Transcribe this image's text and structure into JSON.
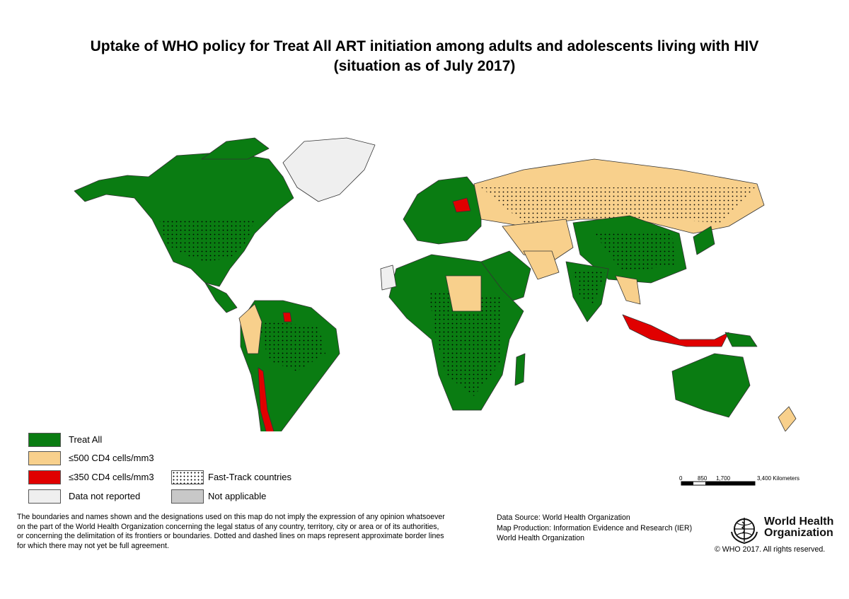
{
  "title_line1": "Uptake of WHO policy for Treat All ART initiation among adults and adolescents living with HIV",
  "title_line2": "(situation as of July 2017)",
  "colors": {
    "treat_all": "#0a7c12",
    "cd4_500": "#f8d08c",
    "cd4_350": "#e00000",
    "not_reported": "#efefef",
    "not_applicable": "#c8c8c8",
    "border": "#333333"
  },
  "legend": {
    "treat_all": "Treat All",
    "cd4_500": "≤500 CD4 cells/mm3",
    "cd4_350": "≤350 CD4 cells/mm3",
    "not_reported": "Data not reported",
    "fast_track": "Fast-Track countries",
    "not_applicable": "Not applicable"
  },
  "scale_bar": {
    "ticks": [
      "0",
      "850",
      "1,700",
      "3,400 Kilometers"
    ]
  },
  "disclaimer": [
    "The boundaries and names shown and the designations used on this map do not imply the expression of any opinion whatsoever",
    "on the part of the World Health Organization concerning the legal status of any country, territory, city or area or of its authorities,",
    "or concerning the delimitation of its frontiers or boundaries. Dotted and dashed lines on maps represent approximate border lines",
    "for which there may not yet be full agreement."
  ],
  "source": [
    "Data Source: World Health Organization",
    "Map Production: Information Evidence and Research (IER)",
    "World Health Organization"
  ],
  "who_logo_text": [
    "World Health",
    "Organization"
  ],
  "copyright": "© WHO 2017. All rights reserved."
}
